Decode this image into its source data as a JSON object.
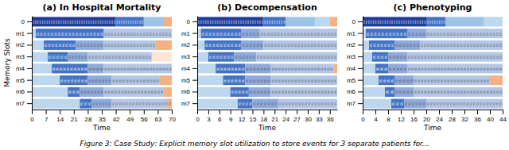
{
  "caption": "Figure 3: Case Study: Explicit memory slot utilization to store events for 3 separate patients for...",
  "chart_data": [
    {
      "type": "bar",
      "orientation": "horizontal",
      "title": "(a) In Hospital Mortality",
      "x_label": "Time",
      "y_label": "Memory Slots",
      "categories": [
        "0",
        "m1",
        "m2",
        "m3",
        "m4",
        "m5",
        "m6",
        "m7"
      ],
      "xlim": [
        0,
        70
      ],
      "xticks": [
        0,
        7,
        14,
        21,
        28,
        35,
        42,
        49,
        56,
        63,
        70
      ],
      "segments": [
        [
          {
            "start": 0,
            "end": 42,
            "color": "#1f3d99",
            "label": "0 0 0 0 0 0 0 0 0 0 0 0 0 0 0 0 0 0 0 0 0 0 0 0 0 0 0 0 0 0 0 0 0 0 0 0"
          },
          {
            "start": 42,
            "end": 56,
            "color": "#4472c4",
            "label": "0 0 0 0 0 0 0 0 0 0 0 0"
          },
          {
            "start": 56,
            "end": 66,
            "color": "#9dc3e6"
          },
          {
            "start": 66,
            "end": 70,
            "color": "#f4b183"
          }
        ],
        [
          {
            "start": 0,
            "end": 2,
            "color": "#bdd7ee"
          },
          {
            "start": 2,
            "end": 36,
            "color": "#4472c4",
            "label": "m1 m1 m1 m1 m1 m1 m1 m1 m1 m1 m1 m1 m1 m1 m1 m1 m1 m1 m1"
          },
          {
            "start": 36,
            "end": 70,
            "color": "#b4c7e7",
            "label": "m1 m1 m1 m1 m1 m1 m1 m1 m1 m1 m1 m1 m1 m1 m1 m1 m1 m1 m1 m1 m1"
          }
        ],
        [
          {
            "start": 0,
            "end": 6,
            "color": "#bdd7ee"
          },
          {
            "start": 6,
            "end": 22,
            "color": "#4472c4",
            "label": "m2 m2 m2 m2 m2 m2 m2 m2 m2"
          },
          {
            "start": 22,
            "end": 36,
            "color": "#8faadc",
            "label": "m2 m2 m2 m2 m2 m2 m2 m2"
          },
          {
            "start": 36,
            "end": 62,
            "color": "#b4c7e7",
            "label": "m2 m2 m2 m2 m2 m2 m2 m2 m2 m2 m2 m2 m2 m2 m2 m2"
          },
          {
            "start": 62,
            "end": 70,
            "color": "#f4b183"
          }
        ],
        [
          {
            "start": 0,
            "end": 8,
            "color": "#bdd7ee"
          },
          {
            "start": 8,
            "end": 18,
            "color": "#4472c4",
            "label": "m3 m3 m3 m3 m3"
          },
          {
            "start": 18,
            "end": 28,
            "color": "#8faadc",
            "label": "m3 m3 m3 m3 m3 m3"
          },
          {
            "start": 28,
            "end": 60,
            "color": "#b4c7e7",
            "label": "m3 m3 m3 m3 m3 m3 m3 m3 m3 m3 m3 m3 m3 m3 m3 m3 m3 m3 m3"
          },
          {
            "start": 60,
            "end": 70,
            "color": "#fce4d6"
          }
        ],
        [
          {
            "start": 0,
            "end": 10,
            "color": "#bdd7ee"
          },
          {
            "start": 10,
            "end": 28,
            "color": "#4472c4",
            "label": "m4 m4 m4 m4 m4 m4 m4 m4 m4 m4"
          },
          {
            "start": 28,
            "end": 36,
            "color": "#8faadc",
            "label": "m4 m4 m4 m4"
          },
          {
            "start": 36,
            "end": 70,
            "color": "#b4c7e7",
            "label": "m4 m4 m4 m4 m4 m4 m4 m4 m4 m4 m4 m4 m4 m4 m4 m4 m4 m4 m4 m4 m4"
          }
        ],
        [
          {
            "start": 0,
            "end": 14,
            "color": "#bdd7ee"
          },
          {
            "start": 14,
            "end": 28,
            "color": "#4472c4",
            "label": "m5 m5 m5 m5 m5 m5 m5 m5"
          },
          {
            "start": 28,
            "end": 40,
            "color": "#8faadc",
            "label": "m5 m5 m5 m5 m5 m5 m5"
          },
          {
            "start": 40,
            "end": 64,
            "color": "#b4c7e7",
            "label": "m5 m5 m5 m5 m5 m5 m5 m5 m5 m5 m5 m5 m5 m5"
          },
          {
            "start": 64,
            "end": 70,
            "color": "#f4b183"
          }
        ],
        [
          {
            "start": 0,
            "end": 18,
            "color": "#bdd7ee"
          },
          {
            "start": 18,
            "end": 24,
            "color": "#4472c4",
            "label": "m6 m6 m6"
          },
          {
            "start": 24,
            "end": 36,
            "color": "#8faadc",
            "label": "m6 m6 m6 m6 m6 m6 m6"
          },
          {
            "start": 36,
            "end": 66,
            "color": "#b4c7e7",
            "label": "m6 m6 m6 m6 m6 m6 m6 m6 m6 m6 m6 m6 m6 m6 m6 m6 m6 m6"
          },
          {
            "start": 66,
            "end": 70,
            "color": "#f4b183"
          }
        ],
        [
          {
            "start": 0,
            "end": 24,
            "color": "#bdd7ee"
          },
          {
            "start": 24,
            "end": 30,
            "color": "#4472c4",
            "label": "m7 m7 m7"
          },
          {
            "start": 30,
            "end": 40,
            "color": "#8faadc",
            "label": "m7 m7 m7 m7 m7 m7"
          },
          {
            "start": 40,
            "end": 70,
            "color": "#b4c7e7",
            "label": "m7 m7 m7 m7 m7 m7 m7 m7 m7 m7 m7 m7 m7 m7 m7 m7 m7 m7"
          },
          {
            "start": 68,
            "end": 70,
            "color": "#f4b183"
          }
        ]
      ]
    },
    {
      "type": "bar",
      "orientation": "horizontal",
      "title": "(b) Decompensation",
      "x_label": "Time",
      "categories": [
        "0",
        "m1",
        "m2",
        "m3",
        "m4",
        "m5",
        "m6",
        "m7"
      ],
      "xlim": [
        0,
        38
      ],
      "xticks": [
        0,
        3,
        6,
        9,
        12,
        15,
        18,
        21,
        24,
        27,
        30,
        33,
        36
      ],
      "segments": [
        [
          {
            "start": 0,
            "end": 18,
            "color": "#1f3d99",
            "label": "0 0 0 0 0 0 0 0 0 0 0 0 0 0 0 0 0 0 0 0 0 0 0 0 0 0 0 0"
          },
          {
            "start": 18,
            "end": 24,
            "color": "#4472c4",
            "label": "0 0 0 0 0 0 0 0 0"
          },
          {
            "start": 24,
            "end": 32,
            "color": "#9dc3e6"
          },
          {
            "start": 32,
            "end": 36,
            "color": "#bdd7ee"
          },
          {
            "start": 36,
            "end": 38,
            "color": "#f4b183"
          }
        ],
        [
          {
            "start": 0,
            "end": 1,
            "color": "#bdd7ee"
          },
          {
            "start": 1,
            "end": 12,
            "color": "#4472c4",
            "label": "m1 m1 m1 m1 m1 m1 m1 m1 m1 m1 m1"
          },
          {
            "start": 12,
            "end": 17,
            "color": "#8faadc",
            "label": "m1 m1 m1 m1 m1"
          },
          {
            "start": 17,
            "end": 38,
            "color": "#b4c7e7",
            "label": "m1 m1 m1 m1 m1 m1 m1 m1 m1 m1 m1 m1 m1 m1 m1 m1 m1 m1 m1 m1 m1 m1 m1"
          }
        ],
        [
          {
            "start": 0,
            "end": 2,
            "color": "#bdd7ee"
          },
          {
            "start": 2,
            "end": 12,
            "color": "#4472c4",
            "label": "m2 m2 m2 m2 m2 m2 m2 m2 m2 m2"
          },
          {
            "start": 12,
            "end": 18,
            "color": "#8faadc",
            "label": "m2 m2 m2 m2 m2 m2"
          },
          {
            "start": 18,
            "end": 38,
            "color": "#b4c7e7",
            "label": "m2 m2 m2 m2 m2 m2 m2 m2 m2 m2 m2 m2 m2 m2 m2 m2 m2 m2 m2 m2 m2 m2"
          }
        ],
        [
          {
            "start": 0,
            "end": 3,
            "color": "#bdd7ee"
          },
          {
            "start": 3,
            "end": 10,
            "color": "#4472c4",
            "label": "m3 m3 m3 m3 m3 m3 m3"
          },
          {
            "start": 10,
            "end": 16,
            "color": "#8faadc",
            "label": "m3 m3 m3 m3 m3 m3"
          },
          {
            "start": 16,
            "end": 38,
            "color": "#b4c7e7",
            "label": "m3 m3 m3 m3 m3 m3 m3 m3 m3 m3 m3 m3 m3 m3 m3 m3 m3 m3 m3 m3 m3 m3 m3 m3 m3"
          }
        ],
        [
          {
            "start": 0,
            "end": 5,
            "color": "#bdd7ee"
          },
          {
            "start": 5,
            "end": 13,
            "color": "#4472c4",
            "label": "m4 m4 m4 m4 m4 m4 m4 m4"
          },
          {
            "start": 13,
            "end": 20,
            "color": "#8faadc",
            "label": "m4 m4 m4 m4 m4 m4 m4"
          },
          {
            "start": 20,
            "end": 37,
            "color": "#b4c7e7",
            "label": "m4 m4 m4 m4 m4 m4 m4 m4 m4 m4 m4 m4 m4 m4 m4 m4 m4 m4 m4"
          },
          {
            "start": 37,
            "end": 38,
            "color": "#f4b183"
          }
        ],
        [
          {
            "start": 0,
            "end": 7,
            "color": "#bdd7ee"
          },
          {
            "start": 7,
            "end": 13,
            "color": "#4472c4",
            "label": "m5 m5 m5 m5 m5 m5"
          },
          {
            "start": 13,
            "end": 20,
            "color": "#8faadc",
            "label": "m5 m5 m5 m5 m5 m5 m5"
          },
          {
            "start": 20,
            "end": 38,
            "color": "#b4c7e7",
            "label": "m5 m5 m5 m5 m5 m5 m5 m5 m5 m5 m5 m5 m5 m5 m5 m5 m5 m5 m5 m5"
          }
        ],
        [
          {
            "start": 0,
            "end": 9,
            "color": "#bdd7ee"
          },
          {
            "start": 9,
            "end": 14,
            "color": "#4472c4",
            "label": "m6 m6 m6 m6 m6"
          },
          {
            "start": 14,
            "end": 20,
            "color": "#8faadc",
            "label": "m6 m6 m6 m6 m6 m6"
          },
          {
            "start": 20,
            "end": 38,
            "color": "#b4c7e7",
            "label": "m6 m6 m6 m6 m6 m6 m6 m6 m6 m6 m6 m6 m6 m6 m6 m6 m6 m6 m6 m6"
          }
        ],
        [
          {
            "start": 0,
            "end": 11,
            "color": "#bdd7ee"
          },
          {
            "start": 11,
            "end": 15,
            "color": "#4472c4",
            "label": "m7 m7 m7 m7"
          },
          {
            "start": 15,
            "end": 22,
            "color": "#8faadc",
            "label": "m7 m7 m7 m7 m7 m7 m7"
          },
          {
            "start": 22,
            "end": 38,
            "color": "#b4c7e7",
            "label": "m7 m7 m7 m7 m7 m7 m7 m7 m7 m7 m7 m7 m7 m7 m7 m7 m7 m7"
          }
        ]
      ]
    },
    {
      "type": "bar",
      "orientation": "horizontal",
      "title": "(c) Phenotyping",
      "x_label": "Time",
      "categories": [
        "0",
        "m1",
        "m2",
        "m3",
        "m4",
        "m5",
        "m6",
        "m7"
      ],
      "xlim": [
        0,
        44
      ],
      "xticks": [
        0,
        4,
        8,
        12,
        16,
        20,
        24,
        28,
        32,
        36,
        40,
        44
      ],
      "segments": [
        [
          {
            "start": 0,
            "end": 20,
            "color": "#1f3d99",
            "label": "0 0 0 0 0 0 0 0 0 0 0 0 0 0 0 0 0 0 0 0 0 0 0 0 0 0 0"
          },
          {
            "start": 20,
            "end": 26,
            "color": "#4472c4",
            "label": "0 0 0 0 0 0 0 0"
          },
          {
            "start": 26,
            "end": 38,
            "color": "#9dc3e6"
          },
          {
            "start": 38,
            "end": 44,
            "color": "#bdd7ee"
          }
        ],
        [
          {
            "start": 0,
            "end": 1,
            "color": "#bdd7ee"
          },
          {
            "start": 1,
            "end": 14,
            "color": "#4472c4",
            "label": "m1 m1 m1 m1 m1 m1 m1 m1 m1 m1 m1"
          },
          {
            "start": 14,
            "end": 20,
            "color": "#8faadc",
            "label": "m1 m1 m1 m1 m1"
          },
          {
            "start": 20,
            "end": 44,
            "color": "#b4c7e7",
            "label": "m1 m1 m1 m1 m1 m1 m1 m1 m1 m1 m1 m1 m1 m1 m1 m1 m1 m1 m1 m1 m1 m1 m1"
          }
        ],
        [
          {
            "start": 0,
            "end": 2,
            "color": "#bdd7ee"
          },
          {
            "start": 2,
            "end": 10,
            "color": "#4472c4",
            "label": "m2 m2 m2 m2 m2 m2 m2"
          },
          {
            "start": 10,
            "end": 18,
            "color": "#8faadc",
            "label": "m2 m2 m2 m2 m2 m2 m2"
          },
          {
            "start": 18,
            "end": 44,
            "color": "#b4c7e7",
            "label": "m2 m2 m2 m2 m2 m2 m2 m2 m2 m2 m2 m2 m2 m2 m2 m2 m2 m2 m2 m2 m2 m2 m2 m2 m2"
          }
        ],
        [
          {
            "start": 0,
            "end": 3,
            "color": "#bdd7ee"
          },
          {
            "start": 3,
            "end": 8,
            "color": "#4472c4",
            "label": "m3 m3 m3 m3"
          },
          {
            "start": 8,
            "end": 14,
            "color": "#8faadc",
            "label": "m3 m3 m3 m3 m3"
          },
          {
            "start": 14,
            "end": 44,
            "color": "#b4c7e7",
            "label": "m3 m3 m3 m3 m3 m3 m3 m3 m3 m3 m3 m3 m3 m3 m3 m3 m3 m3 m3 m3 m3 m3 m3 m3 m3 m3 m3 m3 m3"
          }
        ],
        [
          {
            "start": 0,
            "end": 4,
            "color": "#bdd7ee"
          },
          {
            "start": 4,
            "end": 8,
            "color": "#4472c4",
            "label": "m4 m4 m4"
          },
          {
            "start": 8,
            "end": 14,
            "color": "#8faadc",
            "label": "m4 m4 m4 m4 m4"
          },
          {
            "start": 14,
            "end": 44,
            "color": "#b4c7e7",
            "label": "m4 m4 m4 m4 m4 m4 m4 m4 m4 m4 m4 m4 m4 m4 m4 m4 m4 m4 m4 m4 m4 m4 m4 m4 m4 m4 m4 m4 m4"
          }
        ],
        [
          {
            "start": 0,
            "end": 5,
            "color": "#bdd7ee"
          },
          {
            "start": 5,
            "end": 10,
            "color": "#4472c4",
            "label": "m5 m5 m5 m5"
          },
          {
            "start": 10,
            "end": 16,
            "color": "#8faadc",
            "label": "m5 m5 m5 m5 m5"
          },
          {
            "start": 16,
            "end": 40,
            "color": "#b4c7e7",
            "label": "m5 m5 m5 m5 m5 m5 m5 m5 m5 m5 m5 m5 m5 m5 m5 m5 m5 m5 m5 m5 m5 m5 m5"
          },
          {
            "start": 40,
            "end": 44,
            "color": "#f4b183"
          }
        ],
        [
          {
            "start": 0,
            "end": 7,
            "color": "#bdd7ee"
          },
          {
            "start": 7,
            "end": 10,
            "color": "#4472c4",
            "label": "m6 m6"
          },
          {
            "start": 10,
            "end": 16,
            "color": "#8faadc",
            "label": "m6 m6 m6 m6 m6"
          },
          {
            "start": 16,
            "end": 44,
            "color": "#b4c7e7",
            "label": "m6 m6 m6 m6 m6 m6 m6 m6 m6 m6 m6 m6 m6 m6 m6 m6 m6 m6 m6 m6 m6 m6 m6 m6 m6 m6 m6"
          }
        ],
        [
          {
            "start": 0,
            "end": 9,
            "color": "#bdd7ee"
          },
          {
            "start": 9,
            "end": 13,
            "color": "#4472c4",
            "label": "m7 m7 m7"
          },
          {
            "start": 13,
            "end": 20,
            "color": "#8faadc",
            "label": "m7 m7 m7 m7 m7 m7"
          },
          {
            "start": 20,
            "end": 44,
            "color": "#b4c7e7",
            "label": "m7 m7 m7 m7 m7 m7 m7 m7 m7 m7 m7 m7 m7 m7 m7 m7 m7 m7 m7 m7 m7 m7 m7"
          }
        ]
      ]
    }
  ]
}
